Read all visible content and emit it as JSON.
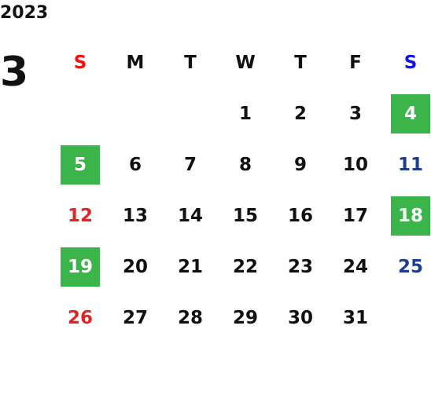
{
  "year": "2023",
  "month": "3",
  "weekdays": [
    "S",
    "M",
    "T",
    "W",
    "T",
    "F",
    "S"
  ],
  "weeks": [
    [
      null,
      null,
      null,
      {
        "day": "1"
      },
      {
        "day": "2"
      },
      {
        "day": "3"
      },
      {
        "day": "4",
        "highlight": true
      }
    ],
    [
      {
        "day": "5",
        "highlight": true
      },
      {
        "day": "6"
      },
      {
        "day": "7"
      },
      {
        "day": "8"
      },
      {
        "day": "9"
      },
      {
        "day": "10"
      },
      {
        "day": "11"
      }
    ],
    [
      {
        "day": "12"
      },
      {
        "day": "13"
      },
      {
        "day": "14"
      },
      {
        "day": "15"
      },
      {
        "day": "16"
      },
      {
        "day": "17"
      },
      {
        "day": "18",
        "highlight": true
      }
    ],
    [
      {
        "day": "19",
        "highlight": true
      },
      {
        "day": "20"
      },
      {
        "day": "21"
      },
      {
        "day": "22"
      },
      {
        "day": "23"
      },
      {
        "day": "24"
      },
      {
        "day": "25"
      }
    ],
    [
      {
        "day": "26"
      },
      {
        "day": "27"
      },
      {
        "day": "28"
      },
      {
        "day": "29"
      },
      {
        "day": "30"
      },
      {
        "day": "31"
      },
      null
    ]
  ]
}
